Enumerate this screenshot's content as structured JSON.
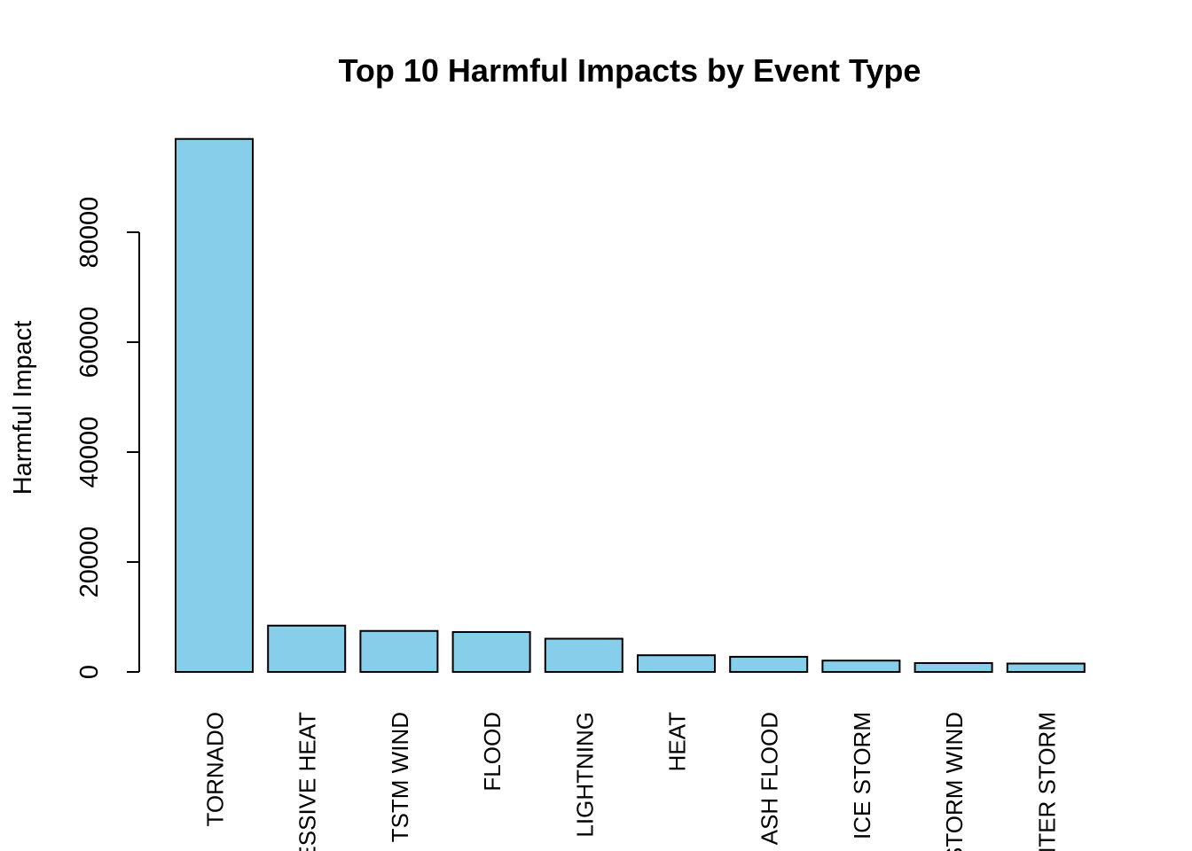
{
  "chart_data": {
    "type": "bar",
    "title": "Top 10 Harmful Impacts by Event Type",
    "y_label": "Harmful Impact",
    "categories": [
      "TORNADO",
      "ESSIVE HEAT",
      "TSTM WIND",
      "FLOOD",
      "LIGHTNING",
      "HEAT",
      "ASH FLOOD",
      "ICE STORM",
      "STORM WIND",
      "NTER STORM"
    ],
    "values": [
      96979,
      8428,
      7461,
      7259,
      6046,
      3037,
      2755,
      2064,
      1621,
      1527
    ],
    "color": "#87ceeb",
    "ylim": [
      0,
      100000
    ],
    "yticks": [
      0,
      20000,
      40000,
      60000,
      80000
    ]
  }
}
